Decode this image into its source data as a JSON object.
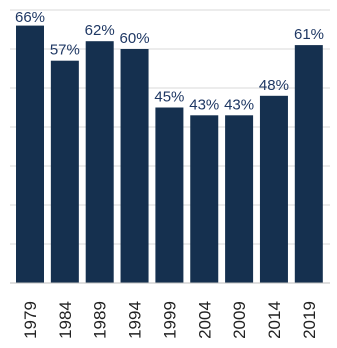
{
  "chart_data": {
    "type": "bar",
    "title": "",
    "xlabel": "",
    "ylabel": "",
    "categories": [
      "1979",
      "1984",
      "1989",
      "1994",
      "1999",
      "2004",
      "2009",
      "2014",
      "2019"
    ],
    "values": [
      66,
      57,
      62,
      60,
      45,
      43,
      43,
      48,
      61
    ],
    "value_labels": [
      "66%",
      "57%",
      "62%",
      "60%",
      "45%",
      "43%",
      "43%",
      "48%",
      ""
    ],
    "extra_label": "61%",
    "ylim": [
      0,
      70
    ],
    "grid": true,
    "legend": "none",
    "bar_color": "#15304f"
  }
}
